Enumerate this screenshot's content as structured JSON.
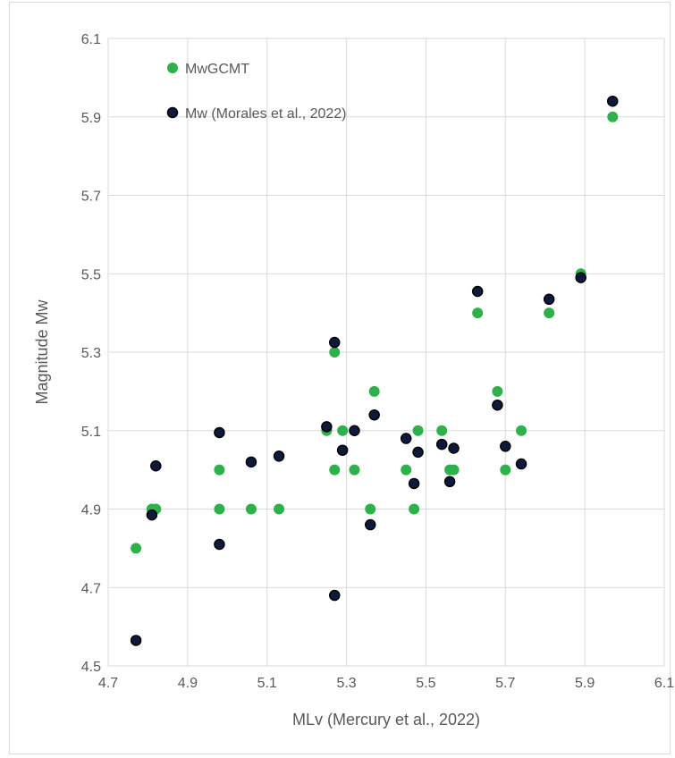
{
  "chart_data": {
    "type": "scatter",
    "xlabel": "MLv (Mercury et al., 2022)",
    "ylabel": "Magnitude Mw",
    "xlim": [
      4.7,
      6.1
    ],
    "ylim": [
      4.5,
      6.1
    ],
    "x_ticks": [
      "4.7",
      "4.9",
      "5.1",
      "5.3",
      "5.5",
      "5.7",
      "5.9",
      "6.1"
    ],
    "y_ticks": [
      "4.5",
      "4.7",
      "4.9",
      "5.1",
      "5.3",
      "5.5",
      "5.7",
      "5.9",
      "6.1"
    ],
    "grid": true,
    "legend_position": "top-left",
    "series": [
      {
        "name": "MwGCMT",
        "color": "#2eb04b",
        "points": [
          [
            4.77,
            4.8
          ],
          [
            4.81,
            4.9
          ],
          [
            4.82,
            4.9
          ],
          [
            4.98,
            5.0
          ],
          [
            4.98,
            4.9
          ],
          [
            5.06,
            4.9
          ],
          [
            5.13,
            4.9
          ],
          [
            5.25,
            5.1
          ],
          [
            5.27,
            5.3
          ],
          [
            5.27,
            5.0
          ],
          [
            5.29,
            5.1
          ],
          [
            5.32,
            5.0
          ],
          [
            5.36,
            4.9
          ],
          [
            5.37,
            5.2
          ],
          [
            5.45,
            5.0
          ],
          [
            5.47,
            4.9
          ],
          [
            5.48,
            5.1
          ],
          [
            5.54,
            5.1
          ],
          [
            5.56,
            5.0
          ],
          [
            5.57,
            5.0
          ],
          [
            5.63,
            5.4
          ],
          [
            5.68,
            5.2
          ],
          [
            5.7,
            5.0
          ],
          [
            5.74,
            5.1
          ],
          [
            5.81,
            5.4
          ],
          [
            5.89,
            5.5
          ],
          [
            5.97,
            5.9
          ]
        ]
      },
      {
        "name": "Mw (Morales et al., 2022)",
        "color": "#0d1a3d",
        "points": [
          [
            4.77,
            4.565
          ],
          [
            4.81,
            4.885
          ],
          [
            4.82,
            5.01
          ],
          [
            4.98,
            5.095
          ],
          [
            4.98,
            4.81
          ],
          [
            5.06,
            5.02
          ],
          [
            5.13,
            5.035
          ],
          [
            5.25,
            5.11
          ],
          [
            5.27,
            5.325
          ],
          [
            5.27,
            4.68
          ],
          [
            5.29,
            5.05
          ],
          [
            5.32,
            5.1
          ],
          [
            5.36,
            4.86
          ],
          [
            5.37,
            5.14
          ],
          [
            5.45,
            5.08
          ],
          [
            5.47,
            4.965
          ],
          [
            5.48,
            5.045
          ],
          [
            5.54,
            5.065
          ],
          [
            5.56,
            4.97
          ],
          [
            5.57,
            5.055
          ],
          [
            5.63,
            5.455
          ],
          [
            5.68,
            5.165
          ],
          [
            5.7,
            5.06
          ],
          [
            5.74,
            5.015
          ],
          [
            5.81,
            5.435
          ],
          [
            5.89,
            5.49
          ],
          [
            5.97,
            5.94
          ]
        ]
      }
    ]
  }
}
